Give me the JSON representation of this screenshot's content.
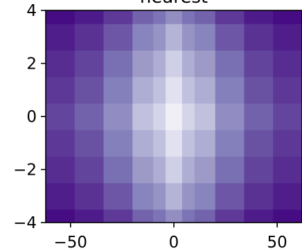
{
  "chart_data": {
    "type": "heatmap",
    "title": "nearest",
    "xlabel": "",
    "ylabel": "",
    "xlim": [
      -62,
      62
    ],
    "ylim": [
      -4,
      4
    ],
    "x_ticks": [
      -50,
      0,
      50
    ],
    "x_tick_labels": [
      "−50",
      "0",
      "50"
    ],
    "y_ticks": [
      -4,
      -2,
      0,
      2,
      4
    ],
    "y_tick_labels": [
      "−4",
      "−2",
      "0",
      "2",
      "4"
    ],
    "colormap": "Purples_r",
    "colormap_stops": [
      "#3f007d",
      "#54278f",
      "#6a51a3",
      "#807dba",
      "#9e9ac8",
      "#bcbddc",
      "#dadaeb",
      "#efedf5",
      "#fcfbfd"
    ],
    "x_edges": [
      -62,
      -48,
      -34,
      -20,
      -10,
      -4,
      0,
      4,
      10,
      20,
      34,
      48,
      62
    ],
    "y_edges": [
      -4,
      -3.5,
      -2.5,
      -1.5,
      -0.5,
      0.5,
      1.5,
      2.5,
      3.5,
      4
    ],
    "grid": false,
    "colorbar": false,
    "column_profile": [
      0.0,
      0.1,
      0.28,
      0.52,
      0.62,
      0.82,
      0.82,
      0.62,
      0.52,
      0.28,
      0.1,
      0.0
    ],
    "row_profile": [
      0.0,
      0.32,
      0.58,
      0.78,
      1.0,
      0.78,
      0.58,
      0.32,
      0.0
    ]
  }
}
